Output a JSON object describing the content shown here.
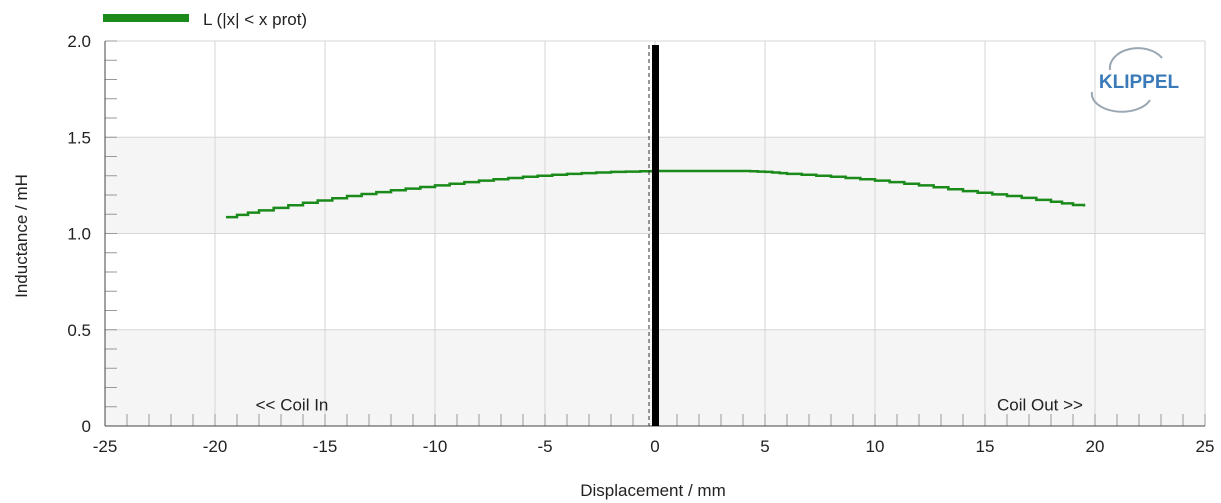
{
  "chart_data": {
    "type": "line",
    "title": "",
    "xlabel": "Displacement / mm",
    "ylabel": "Inductance / mH",
    "xlim": [
      -25,
      25
    ],
    "ylim": [
      0,
      2.0
    ],
    "xticks": [
      -25,
      -20,
      -15,
      -10,
      -5,
      0,
      5,
      10,
      15,
      20,
      25
    ],
    "xtick_labels": [
      "-25",
      "-20",
      "-15",
      "-10",
      "-5",
      "0",
      "5",
      "10",
      "15",
      "20",
      "25"
    ],
    "yticks": [
      0,
      0.5,
      1.0,
      1.5,
      2.0
    ],
    "ytick_labels": [
      "0",
      "0.5",
      "1.0",
      "1.5",
      "2.0"
    ],
    "grid": true,
    "legend_position": "top-left",
    "series": [
      {
        "name": "L (|x| < x prot)",
        "color": "#1a8a1a",
        "x": [
          -19.5,
          -18,
          -16,
          -14,
          -12,
          -10,
          -8,
          -6,
          -4,
          -2,
          0,
          2,
          4,
          5,
          6,
          8,
          10,
          12,
          14,
          16,
          18,
          19.5
        ],
        "y": [
          1.085,
          1.12,
          1.16,
          1.195,
          1.225,
          1.25,
          1.275,
          1.295,
          1.31,
          1.32,
          1.325,
          1.325,
          1.325,
          1.32,
          1.31,
          1.295,
          1.275,
          1.25,
          1.22,
          1.195,
          1.165,
          1.14
        ]
      }
    ],
    "vertical_marker": {
      "x": 0,
      "color": "#000000"
    },
    "annotations": [
      {
        "text": "<< Coil In",
        "x": -16.5,
        "y": 0.08
      },
      {
        "text": "Coil Out >>",
        "x": 17.5,
        "y": 0.08
      }
    ],
    "band_colors": [
      "#f5f5f5",
      "#ffffff"
    ],
    "grid_color": "#d6d6d6"
  },
  "logo": {
    "text": "KLIPPEL",
    "color": "#3a7ab8"
  }
}
